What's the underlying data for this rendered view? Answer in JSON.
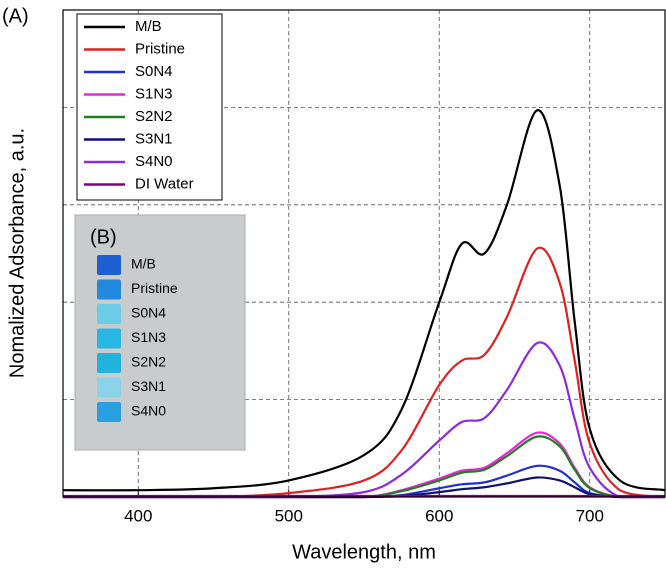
{
  "chart_data": {
    "type": "line",
    "panel_label": "(A)",
    "x_label": "Wavelength, nm",
    "y_label": "Nomalized Adsorbance, a.u.",
    "xlim": [
      350,
      750
    ],
    "xticks": [
      400,
      500,
      600,
      700
    ],
    "ylim": [
      0,
      5
    ],
    "ygrid": [
      1,
      2,
      3,
      4
    ],
    "grid": true,
    "legend": "upper left",
    "x": [
      350,
      400,
      450,
      500,
      550,
      575,
      600,
      615,
      630,
      645,
      665,
      680,
      690,
      700,
      720,
      750
    ],
    "series": [
      {
        "name": "M/B",
        "color": "#000000",
        "values": [
          0.07,
          0.07,
          0.09,
          0.17,
          0.43,
          0.9,
          2.0,
          2.6,
          2.5,
          3.0,
          3.97,
          3.2,
          1.8,
          0.7,
          0.17,
          0.07
        ]
      },
      {
        "name": "Pristine",
        "color": "#e02020",
        "values": [
          0,
          0,
          0,
          0.04,
          0.17,
          0.48,
          1.15,
          1.4,
          1.46,
          1.85,
          2.55,
          2.2,
          1.4,
          0.55,
          0.07,
          0
        ]
      },
      {
        "name": "S0N4",
        "color": "#1f2fd0",
        "values": [
          0,
          0,
          0,
          0,
          0,
          0.02,
          0.09,
          0.13,
          0.15,
          0.22,
          0.32,
          0.27,
          0.15,
          0.04,
          0,
          0
        ]
      },
      {
        "name": "S1N3",
        "color": "#f020e0",
        "values": [
          0,
          0,
          0,
          0,
          0,
          0.07,
          0.19,
          0.27,
          0.3,
          0.45,
          0.66,
          0.55,
          0.3,
          0.1,
          0,
          0
        ]
      },
      {
        "name": "S2N2",
        "color": "#208020",
        "values": [
          0,
          0,
          0,
          0,
          0,
          0.06,
          0.17,
          0.25,
          0.28,
          0.42,
          0.62,
          0.52,
          0.28,
          0.09,
          0,
          0
        ]
      },
      {
        "name": "S3N1",
        "color": "#101070",
        "values": [
          0,
          0,
          0,
          0,
          0,
          0.01,
          0.05,
          0.08,
          0.1,
          0.14,
          0.2,
          0.17,
          0.1,
          0.03,
          0,
          0
        ]
      },
      {
        "name": "S4N0",
        "color": "#8a2be2",
        "values": [
          0,
          0,
          0,
          0,
          0.05,
          0.23,
          0.58,
          0.77,
          0.81,
          1.1,
          1.58,
          1.35,
          0.8,
          0.3,
          0,
          0
        ]
      },
      {
        "name": "DI Water",
        "color": "#800080",
        "values": [
          0.01,
          0.01,
          0.01,
          0.01,
          0.01,
          0.01,
          0.01,
          0.01,
          0.01,
          0.01,
          0.01,
          0.01,
          0.01,
          0.01,
          0.01,
          0.01
        ]
      }
    ],
    "inset": {
      "label": "(B)",
      "samples": [
        {
          "label": "M/B",
          "color": "#1d5fd0"
        },
        {
          "label": "Pristine",
          "color": "#2389dc"
        },
        {
          "label": "S0N4",
          "color": "#6ccbe6"
        },
        {
          "label": "S1N3",
          "color": "#28b6e2"
        },
        {
          "label": "S2N2",
          "color": "#22b3dc"
        },
        {
          "label": "S3N1",
          "color": "#8ad3ea"
        },
        {
          "label": "S4N0",
          "color": "#2a9fe0"
        }
      ]
    }
  }
}
